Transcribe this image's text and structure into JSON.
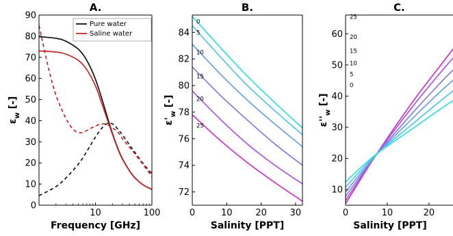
{
  "chart_data": [
    {
      "panel": "A.",
      "type": "line",
      "title": "A.",
      "xlabel": "Frequency [GHz]",
      "ylabel": "εw [-]",
      "ylabel_main": "ε",
      "ylabel_sub": "w",
      "ylabel_unit": "[-]",
      "xscale": "log",
      "xlim": [
        1,
        100
      ],
      "ylim": [
        0,
        90
      ],
      "xticks": [
        10,
        100
      ],
      "yticks": [
        0,
        10,
        20,
        30,
        40,
        50,
        60,
        70,
        80,
        90
      ],
      "legend_position": "top-right",
      "series": [
        {
          "name": "Pure water",
          "color": "#111111",
          "dash": "solid",
          "x": [
            1,
            2,
            3,
            5,
            7,
            10,
            13,
            16,
            20,
            25,
            30,
            40,
            50,
            70,
            100
          ],
          "y": [
            79.8,
            79.0,
            77.6,
            73.8,
            68.6,
            59.6,
            50.3,
            42.3,
            34.0,
            26.8,
            22.0,
            16.3,
            13.0,
            9.6,
            7.5
          ]
        },
        {
          "name": "",
          "color": "#111111",
          "dash": "dashed",
          "x": [
            1,
            2,
            3,
            5,
            7,
            10,
            13,
            16,
            20,
            25,
            30,
            40,
            50,
            70,
            100
          ],
          "y": [
            4.5,
            8.8,
            12.9,
            19.5,
            25.4,
            32.3,
            36.5,
            38.6,
            38.5,
            36.0,
            33.3,
            28.6,
            25.0,
            19.7,
            14.9
          ]
        },
        {
          "name": "Saline water",
          "color": "#cc2222",
          "dash": "solid",
          "x": [
            1,
            2,
            3,
            5,
            7,
            10,
            13,
            16,
            20,
            25,
            30,
            40,
            50,
            70,
            100
          ],
          "y": [
            73.0,
            72.5,
            71.5,
            68.5,
            64.2,
            56.5,
            48.0,
            41.0,
            33.5,
            26.5,
            21.8,
            16.2,
            12.9,
            9.6,
            7.4
          ]
        },
        {
          "name": "",
          "color": "#cc2222",
          "dash": "dashed",
          "x": [
            1,
            1.5,
            2,
            3,
            4,
            5,
            6,
            8,
            10,
            13,
            16,
            20,
            25,
            30,
            40,
            50,
            70,
            100
          ],
          "y": [
            85.0,
            64.0,
            52.0,
            41.0,
            36.0,
            34.4,
            34.5,
            36.2,
            37.5,
            38.5,
            38.2,
            36.6,
            34.6,
            31.5,
            27.4,
            24.3,
            19.2,
            13.5
          ]
        }
      ]
    },
    {
      "panel": "B.",
      "type": "line",
      "title": "B.",
      "xlabel": "Salinity [PPT]",
      "ylabel": "ε'w [-]",
      "ylabel_main": "ε'",
      "ylabel_sub": "w",
      "ylabel_unit": "[-]",
      "xlim": [
        0,
        32
      ],
      "ylim": [
        71,
        85.3
      ],
      "xticks": [
        0,
        10,
        20,
        30
      ],
      "yticks": [
        72,
        74,
        76,
        78,
        80,
        82,
        84
      ],
      "series": [
        {
          "name": "0",
          "label_y": 84.8,
          "color": "#2ee0e0",
          "x": [
            0,
            8,
            16,
            24,
            32
          ],
          "y": [
            85.2,
            82.9,
            80.7,
            78.7,
            76.8
          ]
        },
        {
          "name": "5",
          "label_y": 84.0,
          "color": "#52c6e4",
          "x": [
            0,
            8,
            16,
            24,
            32
          ],
          "y": [
            84.5,
            82.2,
            80.0,
            78.1,
            76.3
          ]
        },
        {
          "name": "10",
          "label_y": 82.5,
          "color": "#6a9fe6",
          "x": [
            0,
            8,
            16,
            24,
            32
          ],
          "y": [
            83.1,
            80.9,
            78.9,
            77.1,
            75.4
          ]
        },
        {
          "name": "15",
          "label_y": 80.7,
          "color": "#8a78e6",
          "x": [
            0,
            8,
            16,
            24,
            32
          ],
          "y": [
            81.4,
            79.3,
            77.4,
            75.6,
            74.0
          ]
        },
        {
          "name": "20",
          "label_y": 79.0,
          "color": "#aa55e0",
          "x": [
            0,
            8,
            16,
            24,
            32
          ],
          "y": [
            79.6,
            77.5,
            75.6,
            74.0,
            72.6
          ]
        },
        {
          "name": "25",
          "label_y": 77.0,
          "color": "#cc33cc",
          "x": [
            0,
            8,
            16,
            24,
            32
          ],
          "y": [
            77.8,
            75.9,
            74.2,
            72.7,
            71.3
          ]
        }
      ]
    },
    {
      "panel": "C.",
      "type": "line",
      "title": "C.",
      "xlabel": "Salinity [PPT]",
      "ylabel": "ε''w [-]",
      "ylabel_main": "ε''",
      "ylabel_sub": "w",
      "ylabel_unit": "[-]",
      "xlim": [
        0,
        32
      ],
      "ylim": [
        5,
        66
      ],
      "xticks": [
        0,
        10,
        20,
        30
      ],
      "yticks": [
        10,
        20,
        30,
        40,
        50,
        60
      ],
      "series": [
        {
          "name": "25",
          "label_y": 65.5,
          "color": "#cc33cc",
          "x": [
            0,
            7,
            16,
            24,
            32
          ],
          "y": [
            5.5,
            20.5,
            38.0,
            52.0,
            66.0
          ]
        },
        {
          "name": "20",
          "label_y": 59.0,
          "color": "#aa55e0",
          "x": [
            0,
            7,
            16,
            24,
            32
          ],
          "y": [
            6.5,
            20.5,
            36.5,
            49.5,
            61.5
          ]
        },
        {
          "name": "15",
          "label_y": 54.5,
          "color": "#8a78e6",
          "x": [
            0,
            7,
            16,
            24,
            32
          ],
          "y": [
            7.8,
            20.5,
            34.5,
            46.0,
            56.5
          ]
        },
        {
          "name": "10",
          "label_y": 50.5,
          "color": "#6a9fe6",
          "x": [
            0,
            7,
            16,
            24,
            32
          ],
          "y": [
            9.2,
            20.6,
            32.8,
            43.0,
            52.0
          ]
        },
        {
          "name": "5",
          "label_y": 47.0,
          "color": "#52c6e4",
          "x": [
            0,
            7,
            16,
            24,
            32
          ],
          "y": [
            10.8,
            20.8,
            31.0,
            39.8,
            48.0
          ]
        },
        {
          "name": "0",
          "label_y": 43.5,
          "color": "#2ee0e0",
          "x": [
            0,
            7,
            16,
            24,
            32
          ],
          "y": [
            12.5,
            21.0,
            29.5,
            37.0,
            44.0
          ]
        }
      ]
    }
  ]
}
